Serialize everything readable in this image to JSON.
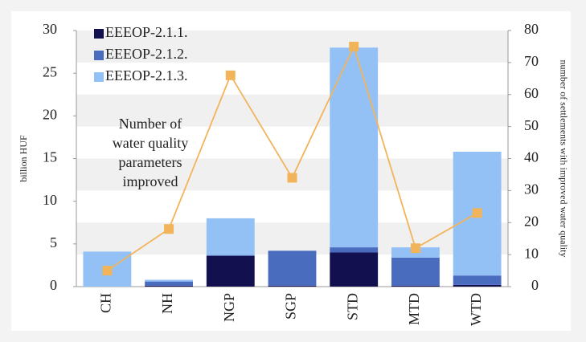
{
  "chart_data": {
    "type": "stacked-bar-line",
    "ylabel": "billion HUF",
    "y2label": "number of settlements with improved water quality",
    "annotation": [
      "Number of",
      "water quality",
      "parameters",
      "improved"
    ],
    "categories": [
      "CH",
      "NH",
      "NGP",
      "SGP",
      "STD",
      "MTD",
      "WTD"
    ],
    "series": [
      {
        "name": "EEEOP-2.1.1.",
        "color": "#13104f",
        "values": [
          0,
          0.1,
          3.6,
          0.1,
          4.0,
          0.1,
          0.2
        ]
      },
      {
        "name": "EEEOP-2.1.2.",
        "color": "#4a6cbf",
        "values": [
          0,
          0.5,
          0.1,
          4.1,
          0.6,
          3.3,
          1.1
        ]
      },
      {
        "name": "EEEOP-2.1.3.",
        "color": "#93c1f5",
        "values": [
          4.1,
          0.2,
          4.3,
          0,
          23.4,
          1.2,
          14.5
        ]
      }
    ],
    "line": {
      "color": "#f2b45a",
      "axis": "y2",
      "values": [
        5,
        18,
        66,
        34,
        75,
        12,
        23
      ]
    },
    "ylim": [
      0,
      30
    ],
    "yticks": [
      0,
      5,
      10,
      15,
      20,
      25,
      30
    ],
    "y2lim": [
      0,
      80
    ],
    "y2ticks": [
      0,
      10,
      20,
      30,
      40,
      50,
      60,
      70,
      80
    ],
    "grid": true
  }
}
